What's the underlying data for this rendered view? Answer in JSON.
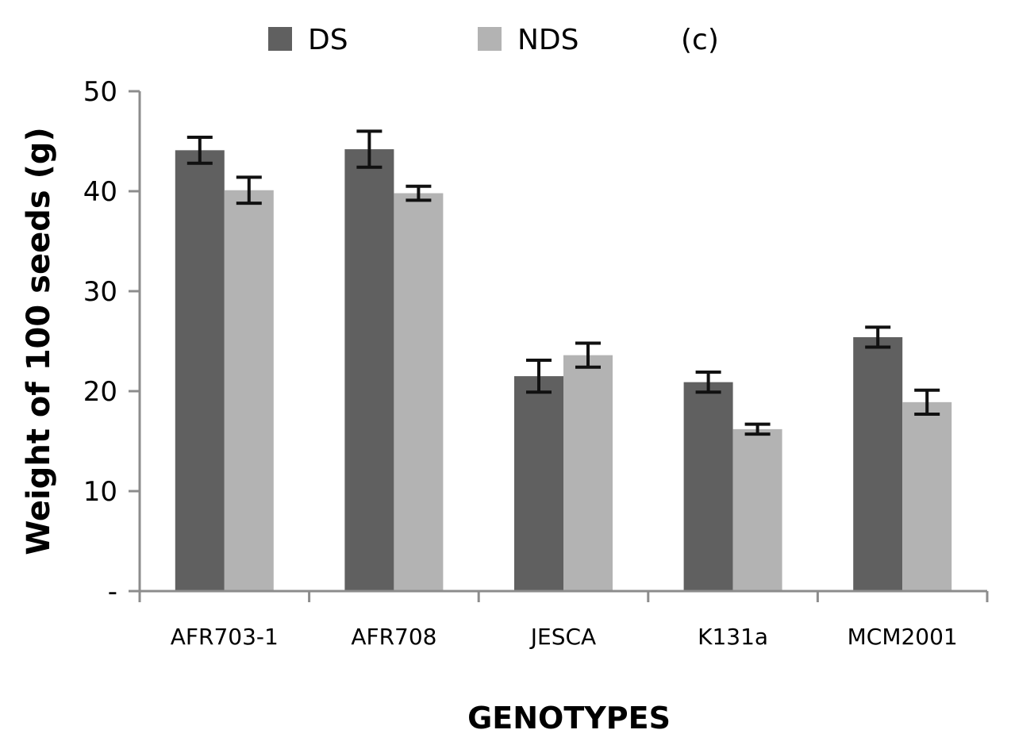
{
  "chart_data": {
    "type": "bar",
    "panel_label": "(c)",
    "title": "",
    "xlabel": "GENOTYPES",
    "ylabel": "Weight of 100 seeds (g)",
    "ylim": [
      0,
      50
    ],
    "yticks": [
      {
        "value": 0,
        "label": "-"
      },
      {
        "value": 10,
        "label": "10"
      },
      {
        "value": 20,
        "label": "20"
      },
      {
        "value": 30,
        "label": "30"
      },
      {
        "value": 40,
        "label": "40"
      },
      {
        "value": 50,
        "label": "50"
      }
    ],
    "categories": [
      "AFR703-1",
      "AFR708",
      "JESCA",
      "K131a",
      "MCM2001"
    ],
    "series": [
      {
        "name": "DS",
        "color": "#606060",
        "values": [
          44.1,
          44.2,
          21.5,
          20.9,
          25.4
        ],
        "errors": [
          1.3,
          1.8,
          1.6,
          1.0,
          1.0
        ]
      },
      {
        "name": "NDS",
        "color": "#b3b3b3",
        "values": [
          40.1,
          39.8,
          23.6,
          16.2,
          18.9
        ],
        "errors": [
          1.3,
          0.7,
          1.2,
          0.5,
          1.2
        ]
      }
    ],
    "legend_position": "top",
    "grid": false
  }
}
